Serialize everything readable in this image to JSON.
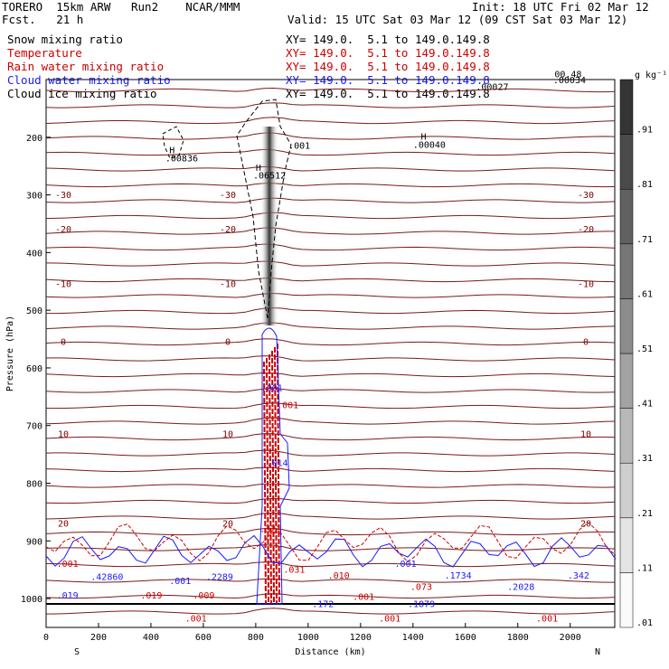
{
  "header": {
    "title_left": "TORERO  15km ARW   Run2    NCAR/MMM",
    "init": "Init: 18 UTC Fri 02 Mar 12",
    "fcst": "Fcst.   21 h",
    "valid": "Valid: 15 UTC Sat 03 Mar 12 (09 CST Sat 03 Mar 12)"
  },
  "fields": [
    {
      "label": "Snow mixing ratio",
      "xy": "XY= 149.0.  5.1 to 149.0.149.8",
      "color": "#000000"
    },
    {
      "label": "Temperature",
      "xy": "XY= 149.0.  5.1 to 149.0.149.8",
      "color": "#cc0000"
    },
    {
      "label": "Rain water mixing ratio",
      "xy": "XY= 149.0.  5.1 to 149.0.149.8",
      "color": "#cc0000"
    },
    {
      "label": "Cloud water mixing ratio",
      "xy": "XY= 149.0.  5.1 to 149.0.149.8",
      "color": "#1a1aff"
    },
    {
      "label": "Cloud ice mixing ratio",
      "xy": "XY= 149.0.  5.1 to 149.0.149.8",
      "color": "#000000"
    }
  ],
  "chart_data": {
    "type": "contour",
    "xlabel": "Distance (km)",
    "ylabel": "Pressure (hPa)",
    "x_ticks": [
      0,
      200,
      400,
      600,
      800,
      1000,
      1200,
      1400,
      1600,
      1800,
      2000
    ],
    "y_ticks": [
      200,
      300,
      400,
      500,
      600,
      700,
      800,
      900,
      1000
    ],
    "xlim": [
      0,
      2170
    ],
    "ylim": [
      100,
      1050
    ],
    "end_labels": {
      "left": "S",
      "right": "N"
    },
    "colorbar": {
      "unit": "g kg⁻¹",
      "ticks": [
        ".01",
        ".11",
        ".21",
        ".31",
        ".41",
        ".51",
        ".61",
        ".71",
        ".81",
        ".91"
      ]
    },
    "temperature_isotherms": [
      {
        "label": "-30",
        "p": 305
      },
      {
        "label": "-20",
        "p": 365
      },
      {
        "label": "-10",
        "p": 460
      },
      {
        "label": "0",
        "p": 560
      },
      {
        "label": "10",
        "p": 720
      },
      {
        "label": "20",
        "p": 875
      }
    ],
    "contour_labels": [
      {
        "text": "H",
        "x": 470,
        "p": 228,
        "color": "#000000"
      },
      {
        "text": ".00836",
        "x": 455,
        "p": 242,
        "color": "#000000"
      },
      {
        "text": "H",
        "x": 800,
        "p": 258,
        "color": "#000000"
      },
      {
        "text": ".06512",
        "x": 790,
        "p": 272,
        "color": "#000000"
      },
      {
        "text": ".001",
        "x": 925,
        "p": 220,
        "color": "#000000"
      },
      {
        "text": "H",
        "x": 1430,
        "p": 204,
        "color": "#000000"
      },
      {
        "text": ".00040",
        "x": 1400,
        "p": 218,
        "color": "#000000"
      },
      {
        "text": ".00027",
        "x": 1640,
        "p": 118,
        "color": "#000000"
      },
      {
        "text": ".00034",
        "x": 1935,
        "p": 106,
        "color": "#000000"
      },
      {
        "text": "00.48",
        "x": 1940,
        "p": 96,
        "color": "#000000"
      },
      {
        "text": ".001",
        "x": 820,
        "p": 640,
        "color": "#1a1aff"
      },
      {
        "text": ".001",
        "x": 880,
        "p": 670,
        "color": "#cc0000"
      },
      {
        "text": ".014",
        "x": 840,
        "p": 770,
        "color": "#1a1aff"
      },
      {
        "text": ".321",
        "x": 815,
        "p": 885,
        "color": "#cc0000"
      },
      {
        "text": ".001",
        "x": 40,
        "p": 945,
        "color": "#cc0000"
      },
      {
        "text": ".42860",
        "x": 170,
        "p": 968,
        "color": "#1a1aff"
      },
      {
        "text": ".001",
        "x": 470,
        "p": 975,
        "color": "#1a1aff"
      },
      {
        "text": ".2289",
        "x": 610,
        "p": 968,
        "color": "#1a1aff"
      },
      {
        "text": ".031",
        "x": 905,
        "p": 955,
        "color": "#cc0000"
      },
      {
        "text": ".010",
        "x": 1075,
        "p": 965,
        "color": "#cc0000"
      },
      {
        "text": ".001",
        "x": 1330,
        "p": 945,
        "color": "#1a1aff"
      },
      {
        "text": ".1734",
        "x": 1520,
        "p": 965,
        "color": "#1a1aff"
      },
      {
        "text": ".073",
        "x": 1390,
        "p": 985,
        "color": "#cc0000"
      },
      {
        "text": ".2028",
        "x": 1760,
        "p": 985,
        "color": "#1a1aff"
      },
      {
        "text": ".342",
        "x": 1990,
        "p": 965,
        "color": "#1a1aff"
      },
      {
        "text": ".019",
        "x": 40,
        "p": 1000,
        "color": "#1a1aff"
      },
      {
        "text": ".019",
        "x": 360,
        "p": 1000,
        "color": "#cc0000"
      },
      {
        "text": ".009",
        "x": 560,
        "p": 1000,
        "color": "#cc0000"
      },
      {
        "text": ".172",
        "x": 1015,
        "p": 1015,
        "color": "#1a1aff"
      },
      {
        "text": ".001",
        "x": 1170,
        "p": 1002,
        "color": "#cc0000"
      },
      {
        "text": ".1879",
        "x": 1380,
        "p": 1015,
        "color": "#1a1aff"
      },
      {
        "text": ".001",
        "x": 530,
        "p": 1040,
        "color": "#cc0000"
      },
      {
        "text": ".001",
        "x": 1270,
        "p": 1040,
        "color": "#cc0000"
      },
      {
        "text": ".001",
        "x": 1870,
        "p": 1040,
        "color": "#cc0000"
      }
    ]
  }
}
